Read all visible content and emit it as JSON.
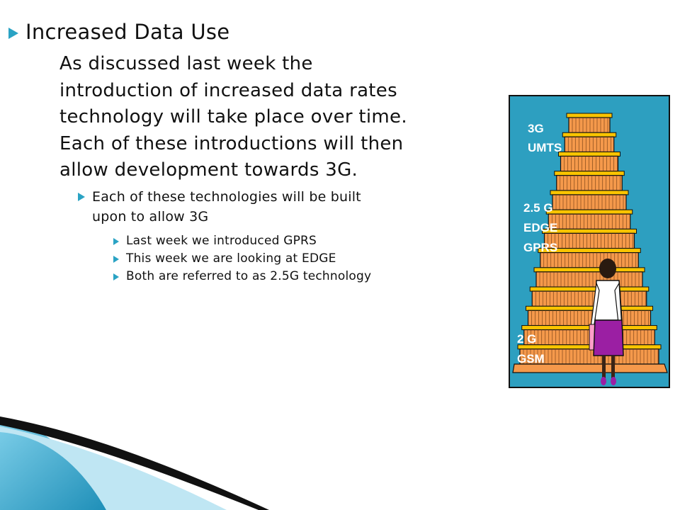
{
  "slide": {
    "title": "Increased Data Use",
    "paragraph_lines": [
      "As discussed last week the",
      "introduction of increased data rates",
      "technology will take place over time.",
      "Each of these introductions will then",
      "allow development towards 3G."
    ],
    "sub_lines": [
      "Each of these technologies will be built",
      "upon to allow 3G"
    ],
    "sub_sub_items": [
      "Last week we introduced GPRS",
      "This week we are looking at EDGE",
      "Both are referred to as 2.5G technology"
    ]
  },
  "illustration": {
    "labels": {
      "g3_a": "3G",
      "g3_b": "UMTS",
      "g25_a": "2.5 G",
      "g25_b": "EDGE",
      "g25_c": "GPRS",
      "g2_a": "2 G",
      "g2_b": "GSM"
    }
  },
  "colors": {
    "accent": "#2aa3c4",
    "panel": "#2d9fc0",
    "step_orange": "#f5994b",
    "step_yellow": "#f9c400"
  }
}
